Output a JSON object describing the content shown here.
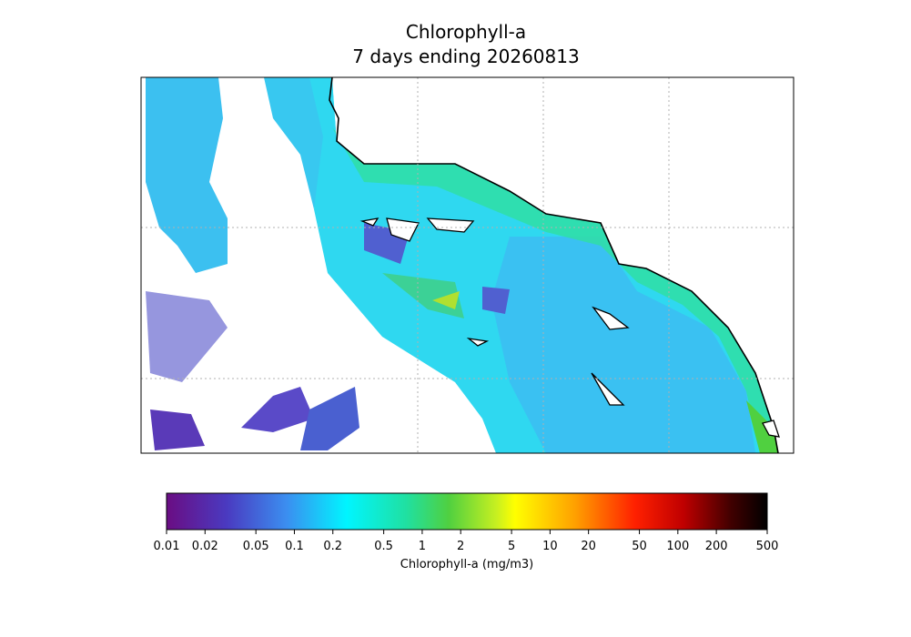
{
  "title": [
    "Chlorophyll-a",
    "7 days ending 20260813"
  ],
  "colorbar": {
    "label": "Chlorophyll-a (mg/m3)",
    "scale": "log",
    "range": [
      0.01,
      500
    ],
    "ticks": [
      0.01,
      0.02,
      0.05,
      0.1,
      0.2,
      0.5,
      1,
      2,
      5,
      10,
      20,
      50,
      100,
      200,
      500
    ]
  }
}
